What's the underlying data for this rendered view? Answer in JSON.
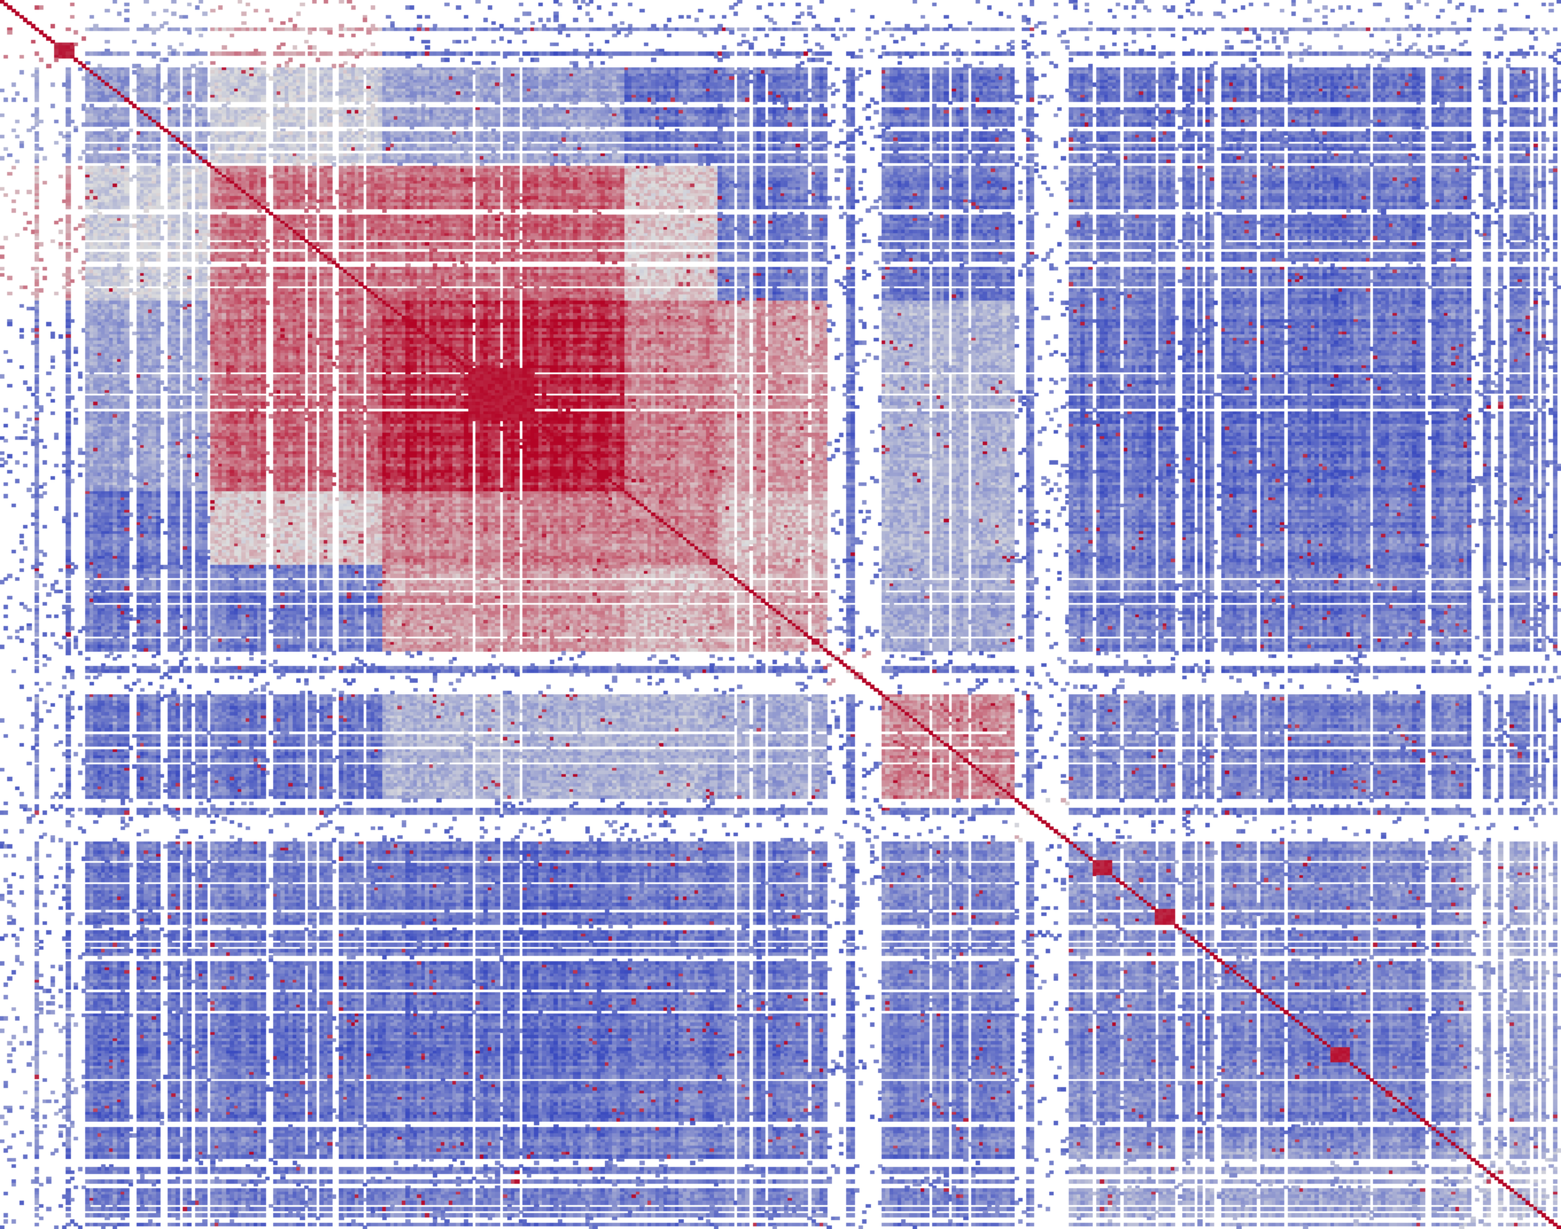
{
  "chart_data": {
    "type": "heatmap",
    "title": "",
    "xlabel": "",
    "ylabel": "",
    "matrix_kind": "symmetric block-clustered similarity matrix",
    "colormap": {
      "name": "coolwarm",
      "low": "#3b4cc0",
      "mid": "#dddddd",
      "high": "#b40426",
      "missing": "#ffffff"
    },
    "value_range": [
      -1,
      1
    ],
    "axis_labels_shown": false,
    "colorbar_shown": false,
    "grid": false,
    "clusters": [
      {
        "id": "A",
        "start": 0.0,
        "end": 0.055,
        "density": 0.22,
        "within": 0.5
      },
      {
        "id": "B",
        "start": 0.055,
        "end": 0.135,
        "density": 0.8,
        "within": -0.4
      },
      {
        "id": "C",
        "start": 0.135,
        "end": 0.245,
        "density": 0.86,
        "within": 0.5
      },
      {
        "id": "D",
        "start": 0.245,
        "end": 0.4,
        "density": 0.9,
        "within": 0.88
      },
      {
        "id": "E",
        "start": 0.4,
        "end": 0.46,
        "density": 0.88,
        "within": 0.45
      },
      {
        "id": "F",
        "start": 0.46,
        "end": 0.53,
        "density": 0.88,
        "within": 0.3
      },
      {
        "id": "G",
        "start": 0.53,
        "end": 0.565,
        "density": 0.3,
        "within": 0.2
      },
      {
        "id": "H",
        "start": 0.565,
        "end": 0.65,
        "density": 0.9,
        "within": 0.4
      },
      {
        "id": "I",
        "start": 0.65,
        "end": 0.685,
        "density": 0.25,
        "within": 0.1
      },
      {
        "id": "J",
        "start": 0.685,
        "end": 0.81,
        "density": 0.9,
        "within": -0.55
      },
      {
        "id": "K",
        "start": 0.81,
        "end": 0.935,
        "density": 0.92,
        "within": -0.65
      },
      {
        "id": "L",
        "start": 0.935,
        "end": 1.0,
        "density": 0.55,
        "within": -0.3
      }
    ],
    "between_cluster": [
      [
        "A",
        "C",
        0.3
      ],
      [
        "A",
        "B",
        -0.45
      ],
      [
        "A",
        "K",
        -0.55
      ],
      [
        "B",
        "C",
        -0.1
      ],
      [
        "B",
        "D",
        -0.4
      ],
      [
        "C",
        "D",
        0.55
      ],
      [
        "C",
        "E",
        0.1
      ],
      [
        "D",
        "E",
        0.45
      ],
      [
        "D",
        "F",
        0.35
      ],
      [
        "E",
        "F",
        0.2
      ],
      [
        "D",
        "H",
        -0.3
      ],
      [
        "E",
        "H",
        -0.3
      ],
      [
        "F",
        "H",
        -0.4
      ],
      [
        "J",
        "K",
        -0.6
      ],
      [
        "J",
        "L",
        -0.4
      ],
      [
        "K",
        "L",
        -0.45
      ],
      [
        "B",
        "J",
        -0.7
      ],
      [
        "B",
        "K",
        -0.7
      ],
      [
        "C",
        "J",
        -0.65
      ],
      [
        "C",
        "K",
        -0.7
      ],
      [
        "D",
        "J",
        -0.75
      ],
      [
        "D",
        "K",
        -0.75
      ],
      [
        "E",
        "J",
        -0.7
      ],
      [
        "E",
        "K",
        -0.7
      ],
      [
        "F",
        "J",
        -0.7
      ],
      [
        "F",
        "K",
        -0.7
      ],
      [
        "H",
        "J",
        -0.6
      ],
      [
        "H",
        "K",
        -0.65
      ]
    ],
    "default_between": -0.7,
    "diagonal_value": 1.0,
    "hot_spots": [
      {
        "i": 0.04,
        "j": 0.04,
        "value": 0.95,
        "span": 0.012
      },
      {
        "i": 0.32,
        "j": 0.32,
        "value": 0.98,
        "span": 0.04
      },
      {
        "i": 0.705,
        "j": 0.705,
        "value": 0.95,
        "span": 0.012
      },
      {
        "i": 0.745,
        "j": 0.745,
        "value": 0.95,
        "span": 0.012
      },
      {
        "i": 0.858,
        "j": 0.858,
        "value": 0.95,
        "span": 0.008
      }
    ]
  }
}
